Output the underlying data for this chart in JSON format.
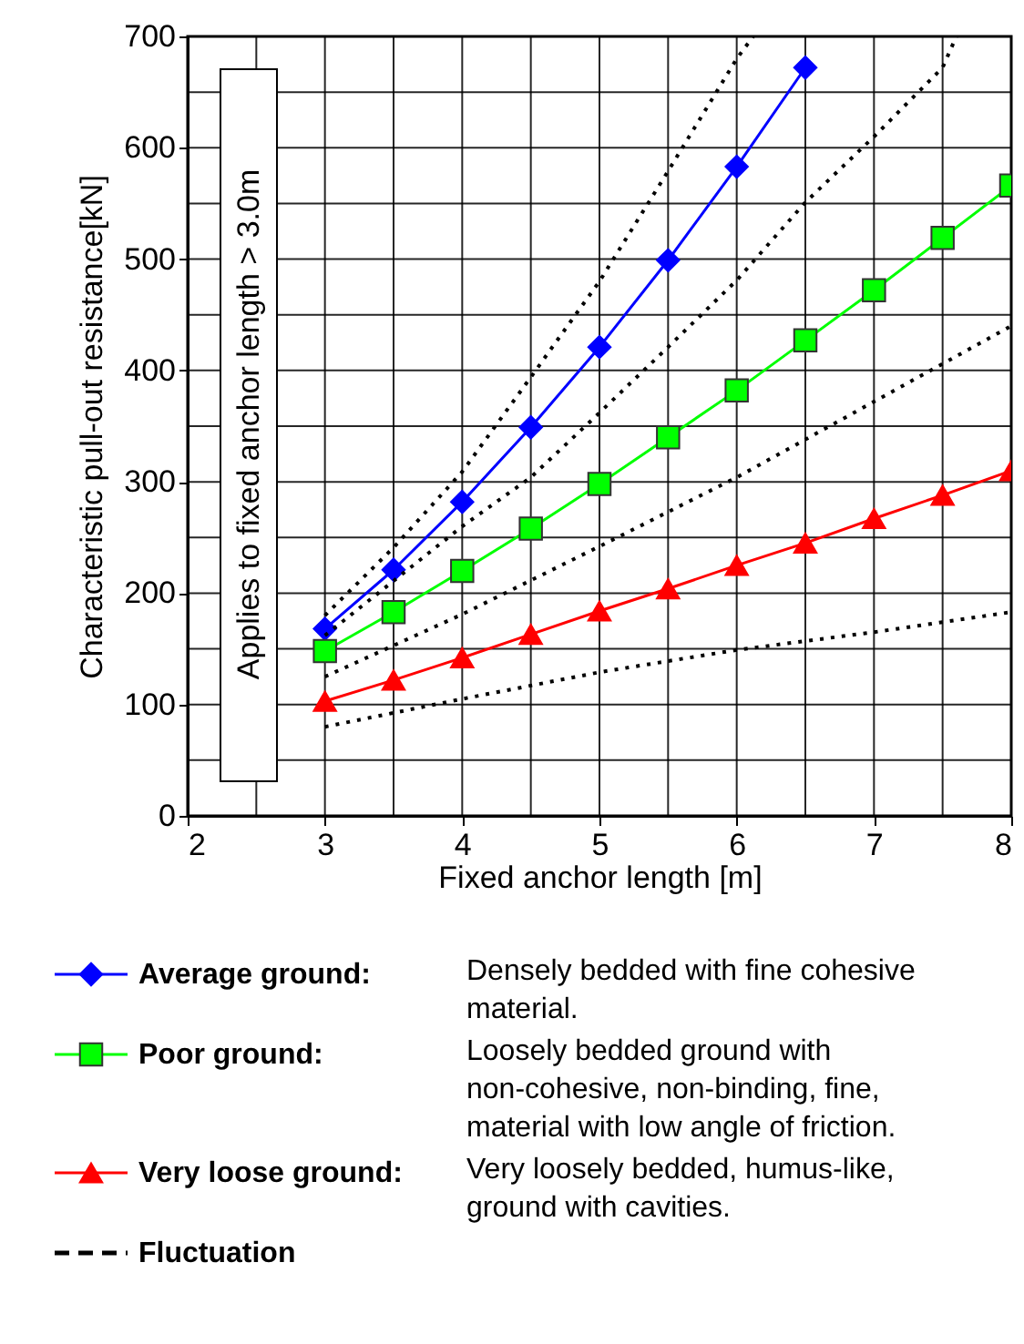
{
  "chart_data": {
    "type": "line",
    "xlabel": "Fixed anchor length [m]",
    "ylabel": "Characteristic pull-out resistance[kN]",
    "x": [
      3,
      3.5,
      4,
      4.5,
      5,
      5.5,
      6,
      6.5,
      7,
      7.5,
      8
    ],
    "series": [
      {
        "name": "Average ground:",
        "color": "#0000ff",
        "marker": "diamond",
        "line_style": "solid",
        "x": [
          3,
          3.5,
          4,
          4.5,
          5,
          5.5,
          6,
          6.5
        ],
        "values": [
          168,
          221,
          282,
          349,
          421,
          499,
          583,
          672
        ]
      },
      {
        "name": "Poor ground:",
        "color": "#00ff00",
        "marker": "square",
        "line_style": "solid",
        "values": [
          148,
          183,
          220,
          258,
          298,
          340,
          382,
          427,
          472,
          519,
          566
        ]
      },
      {
        "name": "Very loose ground:",
        "color": "#ff0000",
        "marker": "triangle",
        "line_style": "solid",
        "values": [
          103,
          122,
          142,
          163,
          184,
          204,
          225,
          245,
          267,
          288,
          310
        ]
      },
      {
        "name": "Fluctuation",
        "color": "#000000",
        "marker": "none",
        "line_style": "dotted",
        "x": [
          3,
          3.5,
          4,
          4.5,
          5,
          5.5,
          6,
          6.12
        ],
        "values": [
          180,
          241,
          309,
          394,
          480,
          579,
          680,
          700
        ]
      },
      {
        "color": "#000000",
        "marker": "none",
        "line_style": "dotted",
        "x": [
          3,
          3.5,
          4,
          4.5,
          5,
          5.5,
          6,
          6.5,
          7,
          7.5,
          7.6
        ],
        "values": [
          162,
          211,
          260,
          304,
          362,
          421,
          481,
          551,
          610,
          672,
          700
        ]
      },
      {
        "color": "#000000",
        "marker": "none",
        "line_style": "dotted",
        "x": [
          3,
          4,
          5,
          6,
          7,
          8
        ],
        "values": [
          125,
          181,
          242,
          304,
          372,
          440
        ]
      },
      {
        "color": "#000000",
        "marker": "none",
        "line_style": "dotted",
        "x": [
          3,
          4,
          5,
          6,
          7,
          8
        ],
        "values": [
          80,
          105,
          129,
          149,
          165,
          183
        ]
      }
    ],
    "xlim": [
      2,
      8
    ],
    "xticks": [
      2,
      {
        "value": 2.5,
        "label": null
      },
      3,
      {
        "value": 3.5,
        "label": null
      },
      4,
      {
        "value": 4.5,
        "label": null
      },
      5,
      {
        "value": 5.5,
        "label": null
      },
      6,
      {
        "value": 6.5,
        "label": null
      },
      7,
      {
        "value": 7.5,
        "label": null
      },
      8
    ],
    "ylim": [
      0,
      700
    ],
    "yticks": [
      0,
      {
        "value": 50,
        "label": null
      },
      100,
      {
        "value": 150,
        "label": null
      },
      200,
      {
        "value": 250,
        "label": null
      },
      300,
      {
        "value": 350,
        "label": null
      },
      400,
      {
        "value": 450,
        "label": null
      },
      500,
      {
        "value": 550,
        "label": null
      },
      600,
      {
        "value": 650,
        "label": null
      },
      700
    ],
    "grid": true,
    "legend": "bottom",
    "annotations": [
      "Applies to fixed anchor length > 3.0m",
      "Densely bedded with fine cohesive material.",
      "Loosely bedded ground with non-cohesive, non-binding, fine, material with low angle of friction.",
      "Very loosely bedded, humus-like, ground with cavities."
    ]
  }
}
